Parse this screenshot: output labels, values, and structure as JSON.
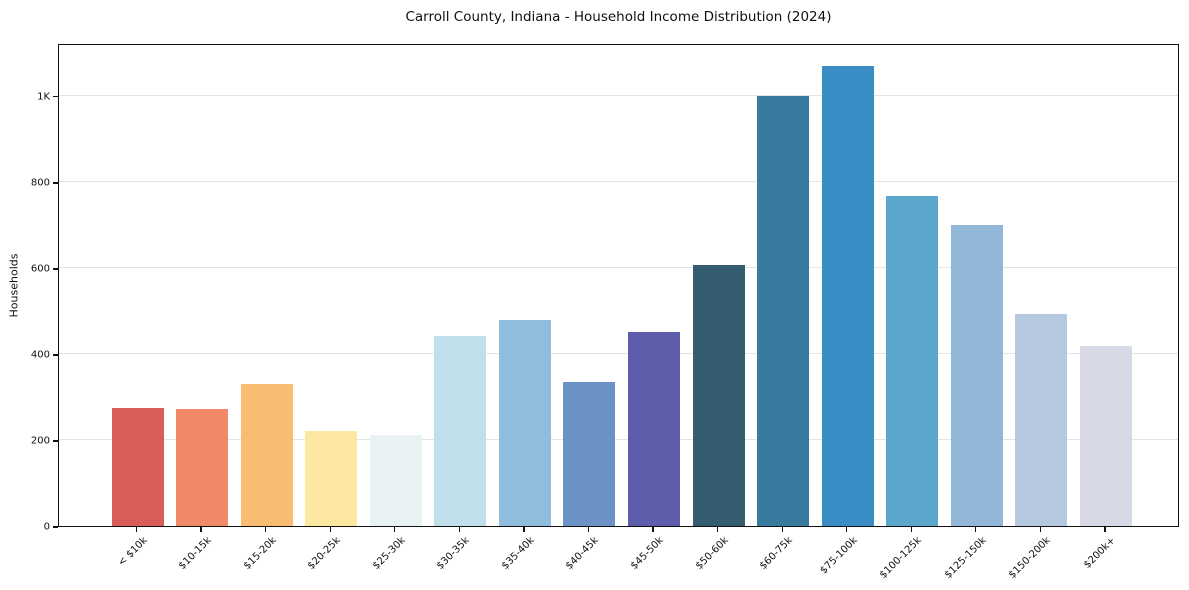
{
  "chart_data": {
    "type": "bar",
    "title": "Carroll County, Indiana - Household Income Distribution (2024)",
    "xlabel": "",
    "ylabel": "Households",
    "categories": [
      "< $10k",
      "$10-15k",
      "$15-20k",
      "$20-25k",
      "$25-30k",
      "$30-35k",
      "$35-40k",
      "$40-45k",
      "$45-50k",
      "$50-60k",
      "$60-75k",
      "$75-100k",
      "$100-125k",
      "$125-150k",
      "$150-200k",
      "$200k+"
    ],
    "values": [
      275,
      272,
      331,
      222,
      212,
      442,
      480,
      335,
      452,
      608,
      1000,
      1069,
      768,
      700,
      493,
      418
    ],
    "bar_colors": [
      "#d65e57",
      "#f1886a",
      "#fabc73",
      "#fde8a2",
      "#e8f2f3",
      "#bfe0eb",
      "#90bddd",
      "#6a92c5",
      "#5d5dab",
      "#345e70",
      "#377a9e",
      "#398dc4",
      "#5ba7cb",
      "#91b6d8",
      "#b5c8e0",
      "#d7d9e7"
    ],
    "ylim": [
      0,
      1123
    ],
    "ytick_values": [
      0,
      200,
      400,
      600,
      800,
      1000
    ],
    "ytick_labels": [
      "0",
      "200",
      "400",
      "600",
      "800",
      "1K"
    ],
    "grid": "horizontal-only",
    "grid_color": "#e4e4e4",
    "axis_color": "#111111",
    "background_color": "#ffffff",
    "legend": "none",
    "xtick_rotation_deg": 45
  }
}
